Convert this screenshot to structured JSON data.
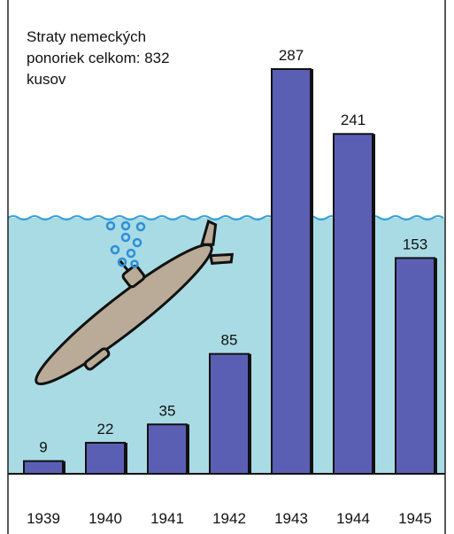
{
  "chart_data": {
    "type": "bar",
    "title": "Straty nemeckých ponoriek celkom: 832 kusov",
    "categories": [
      "1939",
      "1940",
      "1941",
      "1942",
      "1943",
      "1944",
      "1945"
    ],
    "values": [
      9,
      22,
      35,
      85,
      287,
      241,
      153
    ],
    "color": "#5b5fb4"
  }
}
